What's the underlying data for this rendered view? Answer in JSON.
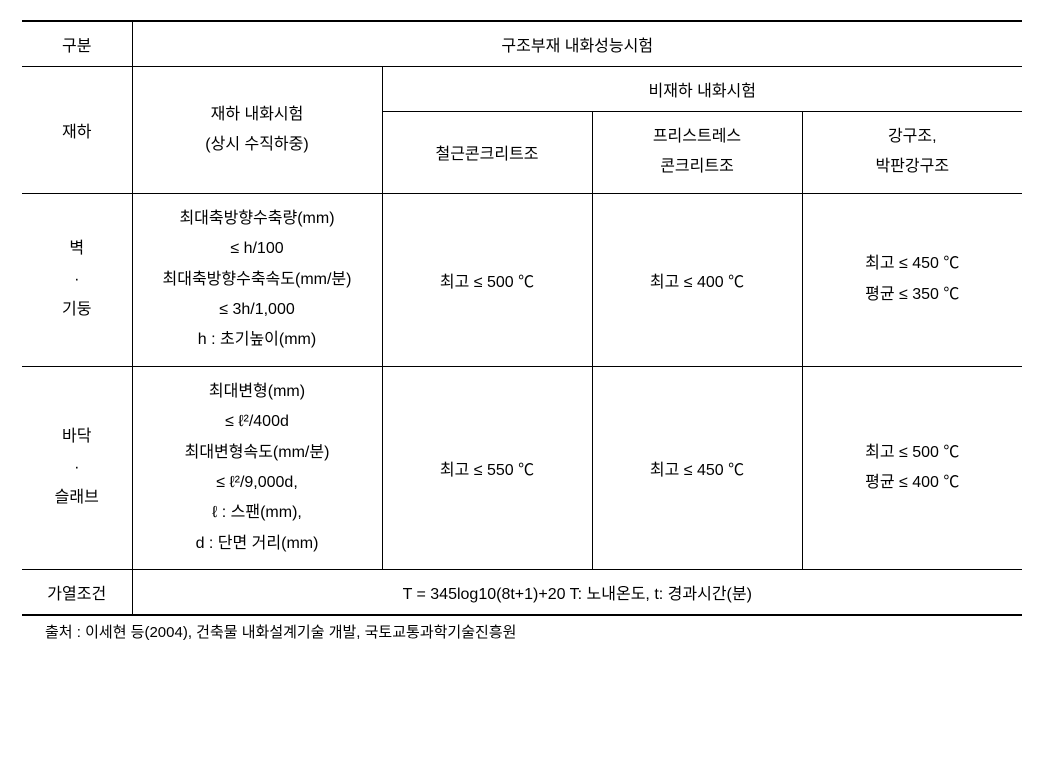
{
  "table": {
    "header": {
      "r1c1": "구분",
      "r1c2": "구조부재 내화성능시험",
      "r2c1": "재하",
      "r2c2": "재하 내화시험\n(상시 수직하중)",
      "r2c3": "비재하 내화시험",
      "r3c3": "철근콘크리트조",
      "r3c4": "프리스트레스\n콘크리트조",
      "r3c5": "강구조,\n박판강구조"
    },
    "rows": {
      "wall_column": {
        "label": "벽\n·\n기둥",
        "loaded": "최대축방향수축량(mm)\n≤ h/100\n최대축방향수축속도(mm/분)\n≤ 3h/1,000\nh : 초기높이(mm)",
        "rc": "최고 ≤ 500 ℃",
        "psc": "최고 ≤ 400 ℃",
        "steel": "최고 ≤ 450 ℃\n평균 ≤ 350 ℃"
      },
      "floor_slab": {
        "label": "바닥\n·\n슬래브",
        "loaded": "최대변형(mm)\n≤ ℓ²/400d\n최대변형속도(mm/분)\n≤ ℓ²/9,000d,\nℓ : 스팬(mm),\nd : 단면 거리(mm)",
        "rc": "최고 ≤ 550 ℃",
        "psc": "최고 ≤ 450 ℃",
        "steel": "최고 ≤ 500 ℃\n평균 ≤ 400 ℃"
      },
      "heating": {
        "label": "가열조건",
        "formula": "T = 345log10(8t+1)+20   T: 노내온도, t: 경과시간(분)"
      }
    }
  },
  "source": "출처 : 이세현 등(2004), 건축물 내화설계기술 개발, 국토교통과학기술진흥원",
  "colors": {
    "border": "#000000",
    "text": "#000000",
    "background": "#ffffff"
  },
  "typography": {
    "body_fontsize": 16,
    "source_fontsize": 15,
    "line_height": 1.9
  }
}
